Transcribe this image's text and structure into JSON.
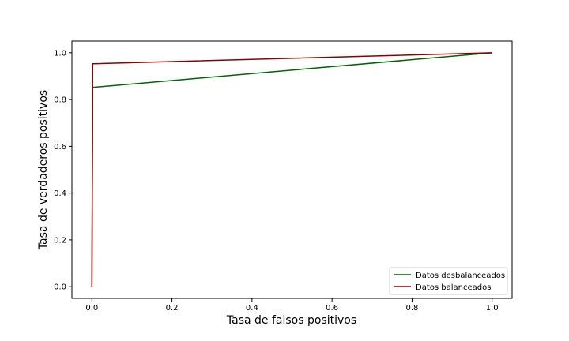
{
  "chart_data": {
    "type": "line",
    "title": "",
    "xlabel": "Tasa de falsos positivos",
    "ylabel": "Tasa de verdaderos positivos",
    "xlim": [
      -0.05,
      1.05
    ],
    "ylim": [
      -0.05,
      1.05
    ],
    "xticks": [
      "0.0",
      "0.2",
      "0.4",
      "0.6",
      "0.8",
      "1.0"
    ],
    "yticks": [
      "0.0",
      "0.2",
      "0.4",
      "0.6",
      "0.8",
      "1.0"
    ],
    "grid": false,
    "legend_position": "lower-right",
    "series": [
      {
        "name": "Datos desbalanceados",
        "color": "#006400",
        "x": [
          0.0,
          0.002,
          1.0
        ],
        "y": [
          0.0,
          0.852,
          1.0
        ]
      },
      {
        "name": "Datos balanceados",
        "color": "#8b0000",
        "x": [
          0.0,
          0.002,
          1.0
        ],
        "y": [
          0.0,
          0.953,
          1.0
        ]
      }
    ]
  }
}
